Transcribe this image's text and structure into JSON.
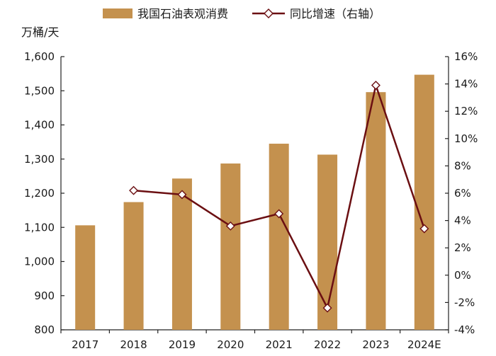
{
  "chart_data": {
    "type": "bar",
    "title": "",
    "y_unit_label": "万桶/天",
    "categories": [
      "2017",
      "2018",
      "2019",
      "2020",
      "2021",
      "2022",
      "2023",
      "2024E"
    ],
    "series": [
      {
        "name": "我国石油表观消费",
        "type": "bar",
        "axis": "left",
        "color": "#C4914E",
        "values": [
          1106,
          1174,
          1243,
          1287,
          1345,
          1313,
          1496,
          1547
        ]
      },
      {
        "name": "同比增速（右轴）",
        "type": "line",
        "axis": "right",
        "color": "#6B0F12",
        "marker": "diamond",
        "values": [
          null,
          6.2,
          5.9,
          3.6,
          4.5,
          -2.4,
          13.9,
          3.4
        ]
      }
    ],
    "ylim_left": [
      800,
      1600
    ],
    "yticks_left": [
      800,
      900,
      1000,
      1100,
      1200,
      1300,
      1400,
      1500,
      1600
    ],
    "ytick_labels_left": [
      "800",
      "900",
      "1,000",
      "1,100",
      "1,200",
      "1,300",
      "1,400",
      "1,500",
      "1,600"
    ],
    "ylim_right": [
      -4,
      16
    ],
    "yticks_right": [
      -4,
      -2,
      0,
      2,
      4,
      6,
      8,
      10,
      12,
      14,
      16
    ],
    "ytick_labels_right": [
      "-4%",
      "-2%",
      "0%",
      "2%",
      "4%",
      "6%",
      "8%",
      "10%",
      "12%",
      "14%",
      "16%"
    ],
    "grid": false,
    "legend_position": "top"
  }
}
